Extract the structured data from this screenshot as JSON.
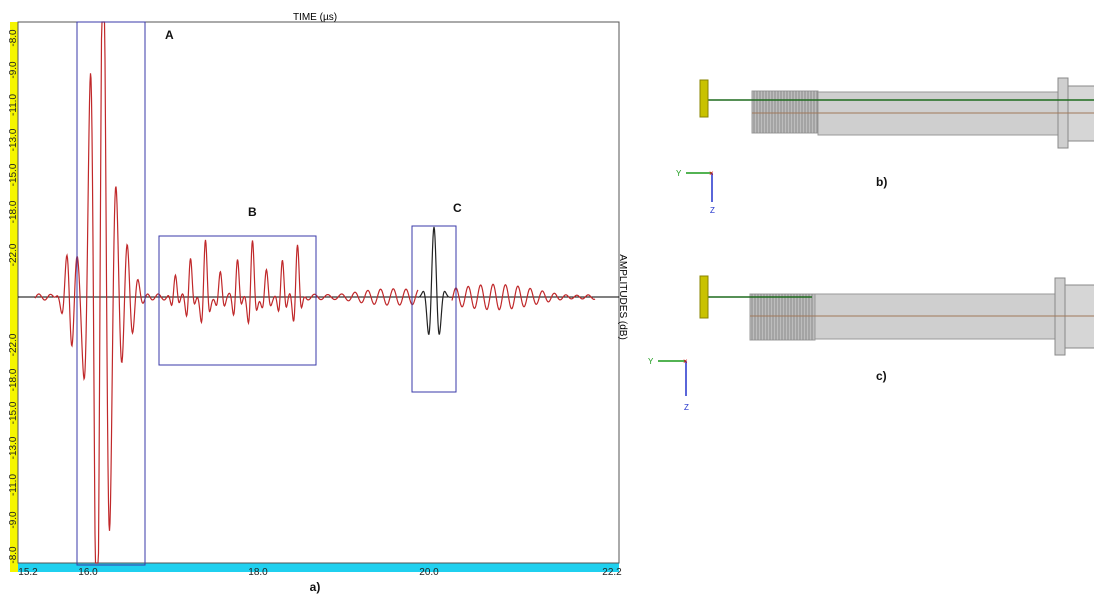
{
  "panel_a": {
    "x_axis_title": "TIME (µs)",
    "y_axis_title": "AMPLITUDES (dB)",
    "x_ticks": [
      "15.2",
      "16.0",
      "18.0",
      "20.0",
      "22.2"
    ],
    "y_ticks": [
      "-8.0",
      "-9.0",
      "-11.0",
      "-13.0",
      "-15.0",
      "-18.0",
      "-22.0",
      "-22.0",
      "-18.0",
      "-15.0",
      "-13.0",
      "-11.0",
      "-9.0",
      "-8.0"
    ],
    "regions": [
      "A",
      "B",
      "C"
    ],
    "caption": "a)"
  },
  "panel_b": {
    "caption": "b)",
    "axis_y": "Y",
    "axis_z": "Z"
  },
  "panel_c": {
    "caption": "c)",
    "axis_y": "Y",
    "axis_z": "Z"
  }
}
